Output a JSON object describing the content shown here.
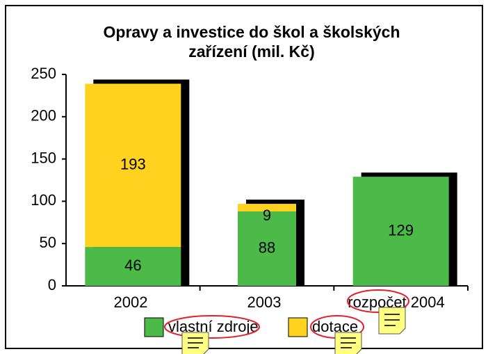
{
  "chart_data": {
    "type": "stacked_bar",
    "title": [
      "Opravy a investice do škol a školských",
      "zařízení (mil. Kč)"
    ],
    "categories": [
      "2002",
      "2003",
      "rozpočet 2004"
    ],
    "series": [
      {
        "name": "vlastní zdroje",
        "color": "#4cba48",
        "values": [
          46,
          88,
          129
        ]
      },
      {
        "name": "dotace",
        "color": "#ffd21f",
        "values": [
          193,
          9,
          null
        ]
      }
    ],
    "ylim": [
      0,
      250
    ],
    "yticks": [
      0,
      50,
      100,
      150,
      200,
      250
    ],
    "shadow_color": "#000000"
  }
}
